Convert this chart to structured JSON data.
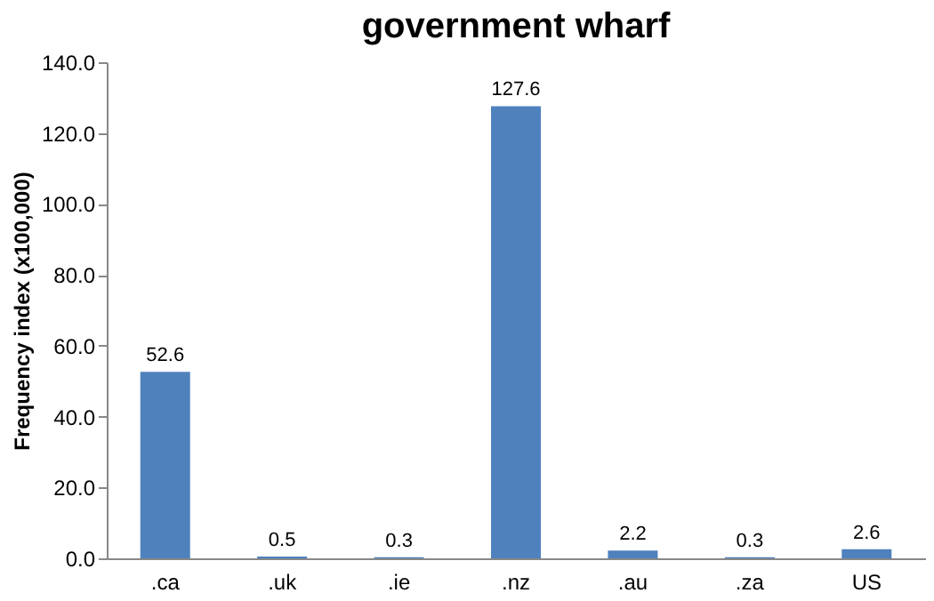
{
  "chart_data": {
    "type": "bar",
    "title": "government wharf",
    "ylabel": "Frequency index (x100,000)",
    "categories": [
      ".ca",
      ".uk",
      ".ie",
      ".nz",
      ".au",
      ".za",
      "US"
    ],
    "values": [
      52.6,
      0.5,
      0.3,
      127.6,
      2.2,
      0.3,
      2.6
    ],
    "color": "#4f81bd",
    "ylim": [
      0,
      140
    ],
    "yticks": [
      {
        "value": 0,
        "label": "0.0"
      },
      {
        "value": 20,
        "label": "20.0"
      },
      {
        "value": 40,
        "label": "40.0"
      },
      {
        "value": 60,
        "label": "60.0"
      },
      {
        "value": 80,
        "label": "80.0"
      },
      {
        "value": 100,
        "label": "100.0"
      },
      {
        "value": 120,
        "label": "120.0"
      },
      {
        "value": 140,
        "label": "140.0"
      }
    ],
    "data_labels": true,
    "grid": false
  }
}
